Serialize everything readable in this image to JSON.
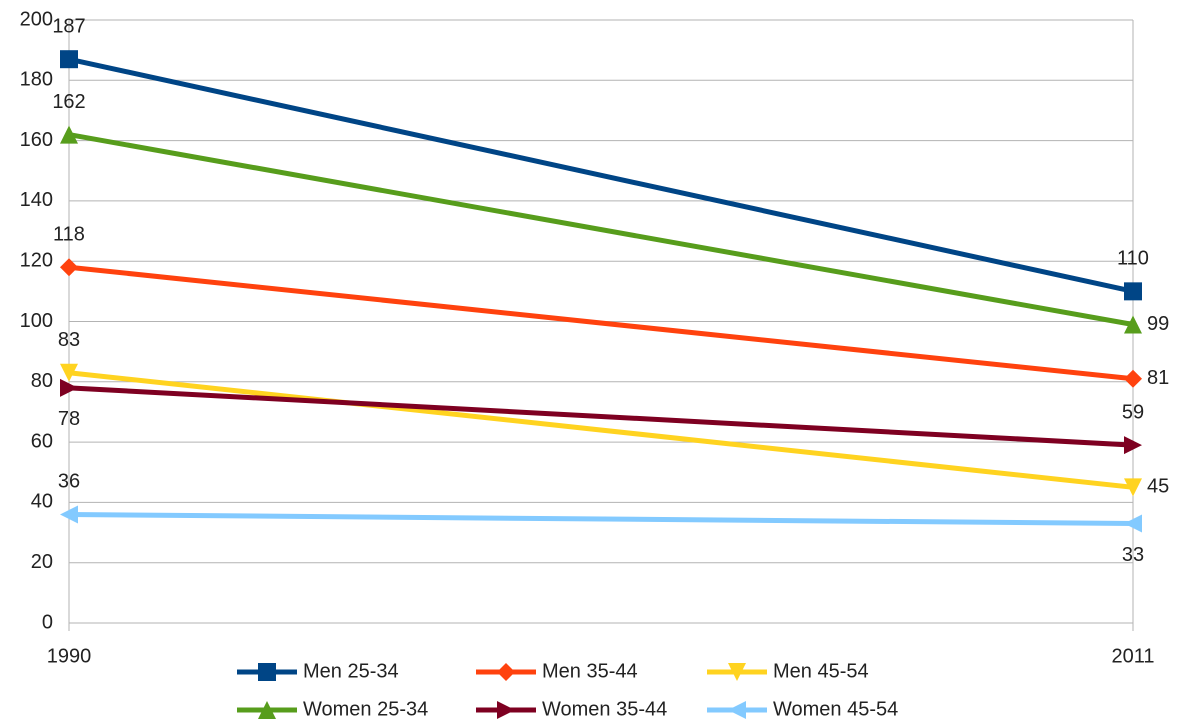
{
  "chart_data": {
    "type": "line",
    "categories": [
      "1990",
      "2011"
    ],
    "series": [
      {
        "name": "Men 25-34",
        "color": "#004586",
        "marker": "square",
        "values": [
          187,
          110
        ]
      },
      {
        "name": "Men 35-44",
        "color": "#ff420e",
        "marker": "diamond",
        "values": [
          118,
          81
        ]
      },
      {
        "name": "Men 45-54",
        "color": "#ffd320",
        "marker": "triangle-down",
        "values": [
          83,
          45
        ]
      },
      {
        "name": "Women 25-34",
        "color": "#579d1c",
        "marker": "triangle-up",
        "values": [
          162,
          99
        ]
      },
      {
        "name": "Women 35-44",
        "color": "#7e0021",
        "marker": "triangle-right",
        "values": [
          78,
          59
        ]
      },
      {
        "name": "Women 45-54",
        "color": "#83caff",
        "marker": "triangle-left",
        "values": [
          36,
          33
        ]
      }
    ],
    "ylim": [
      0,
      200
    ],
    "yticks": [
      0,
      20,
      40,
      60,
      80,
      100,
      120,
      140,
      160,
      180,
      200
    ],
    "grid": true,
    "legend": "bottom"
  }
}
